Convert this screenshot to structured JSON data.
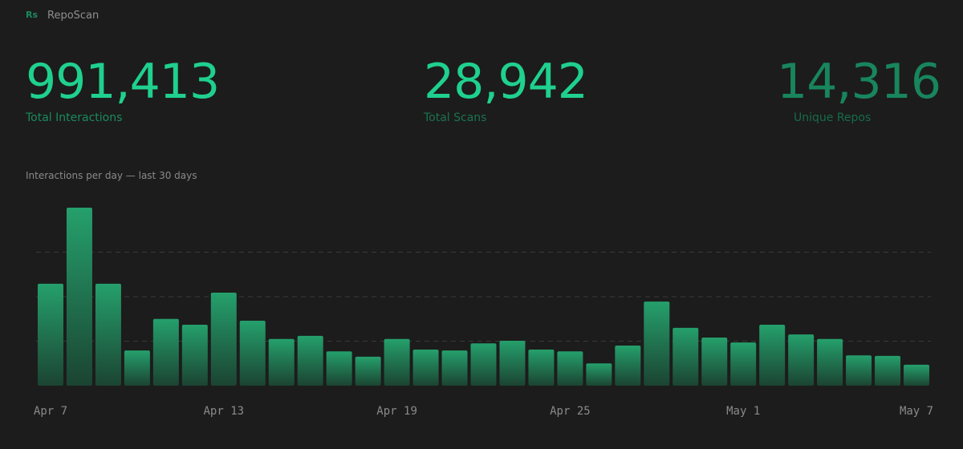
{
  "header": {
    "brand_icon": "Rs",
    "brand": "RepoScan"
  },
  "stats": [
    {
      "value": "991,413",
      "label": "Total Interactions"
    },
    {
      "value": "28,942",
      "label": "Total Scans"
    },
    {
      "value": "14,316",
      "label": "Unique Repos"
    }
  ],
  "chart_data": {
    "type": "bar",
    "title": "Interactions per day — last 30 days",
    "categories": [
      "Apr 7",
      null,
      null,
      null,
      null,
      null,
      "Apr 13",
      null,
      null,
      null,
      null,
      null,
      "Apr 19",
      null,
      null,
      null,
      null,
      null,
      "Apr 25",
      null,
      null,
      null,
      null,
      null,
      "May 1",
      null,
      null,
      null,
      null,
      null,
      "May 7"
    ],
    "values": [
      22900,
      40000,
      22900,
      7900,
      15000,
      13700,
      20900,
      14600,
      10500,
      11200,
      7700,
      6500,
      10500,
      8100,
      7900,
      9500,
      10100,
      8100,
      7700,
      5000,
      9000,
      18900,
      13000,
      10800,
      9700,
      13700,
      11500,
      10500,
      6800,
      6700,
      4700
    ],
    "color": "#23a06c",
    "ylim": [
      0,
      40000
    ],
    "gridlines": [
      10000,
      20000,
      30000
    ],
    "grid": true
  }
}
